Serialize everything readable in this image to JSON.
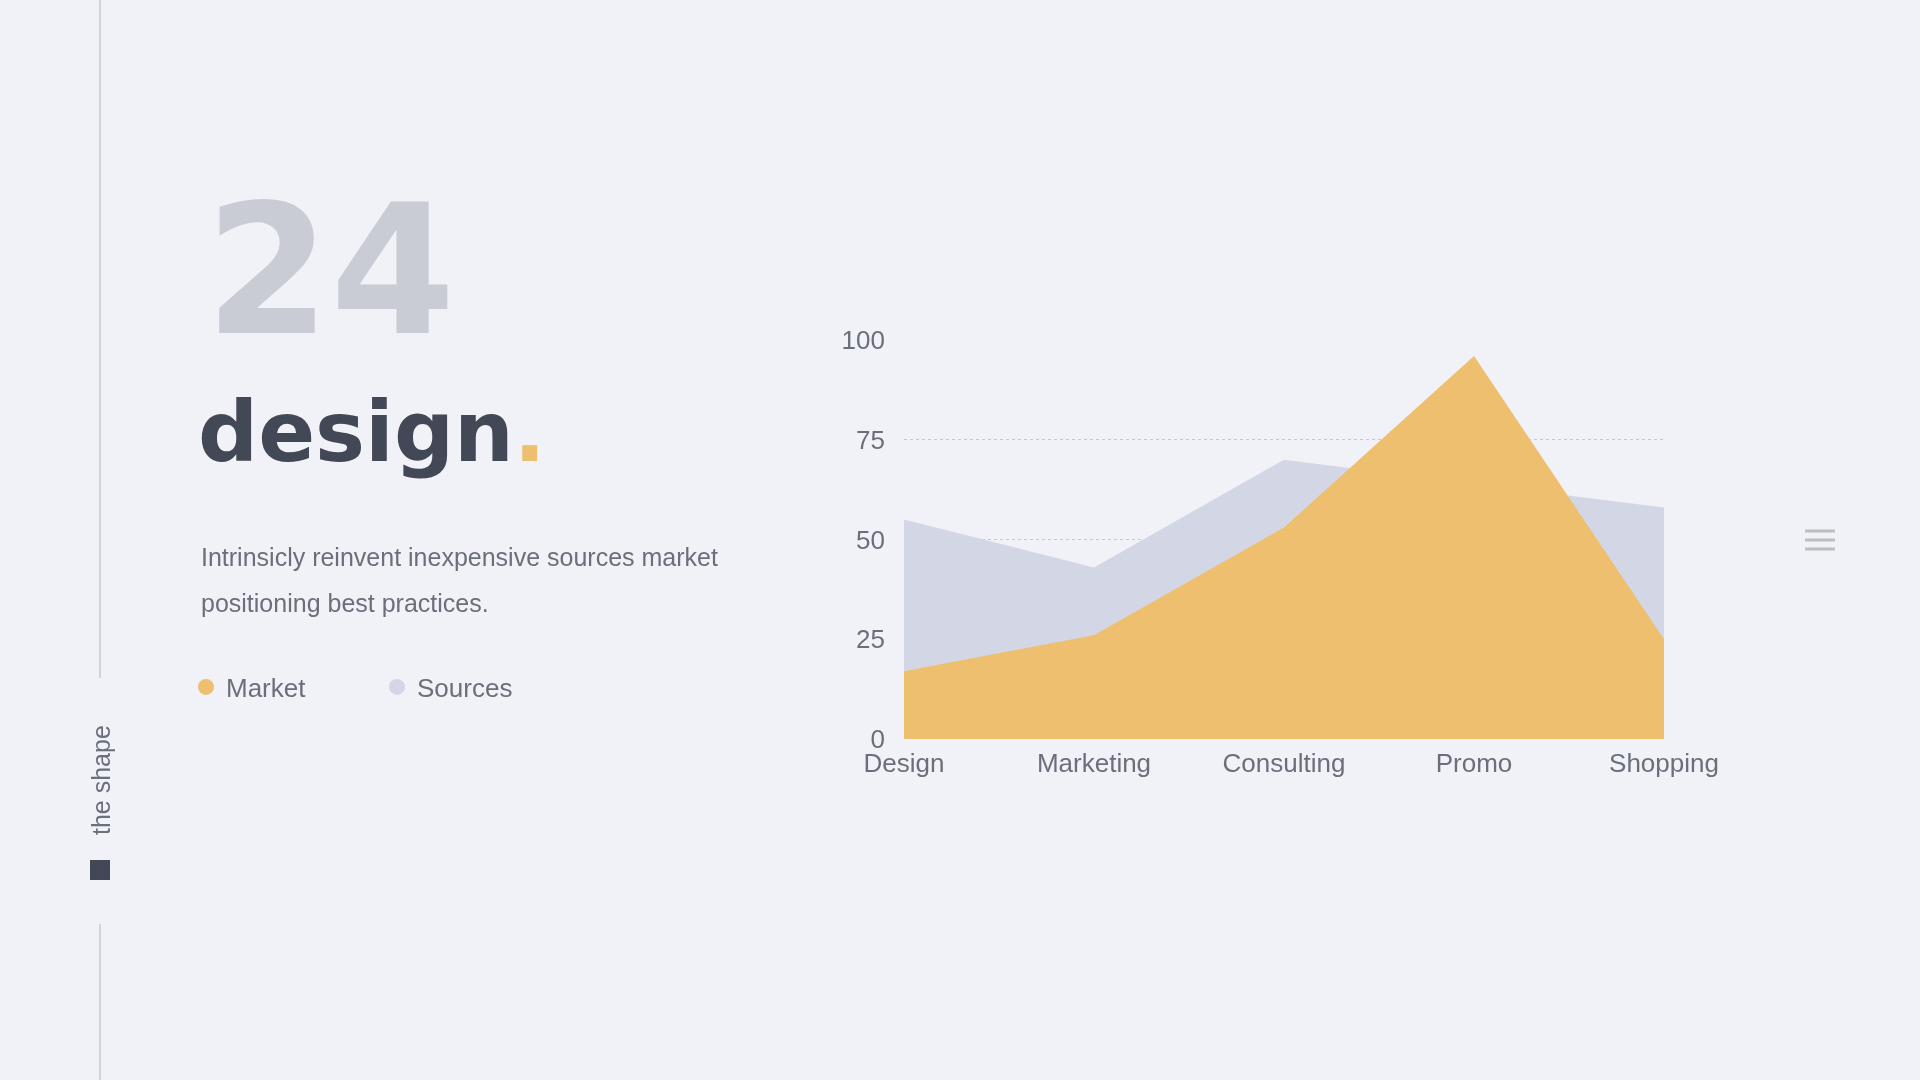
{
  "chart_data": {
    "type": "area",
    "title": "design.",
    "subtitle": "Intrinsicly reinvent inexpensive sources market positioning best practices.",
    "annotations": [
      "24",
      "the shape"
    ],
    "categories": [
      "Design",
      "Marketing",
      "Consulting",
      "Promo",
      "Shopping"
    ],
    "series": [
      {
        "name": "Sources",
        "color": "#d3d6e4",
        "values": [
          55,
          43,
          70,
          null,
          58
        ]
      },
      {
        "name": "Market",
        "color": "#edbf6f",
        "values": [
          17,
          26,
          53,
          96,
          25
        ]
      }
    ],
    "ylim": [
      0,
      100
    ],
    "yticks": [
      0,
      25,
      50,
      75,
      100
    ],
    "grid": "y",
    "legend": "left"
  }
}
